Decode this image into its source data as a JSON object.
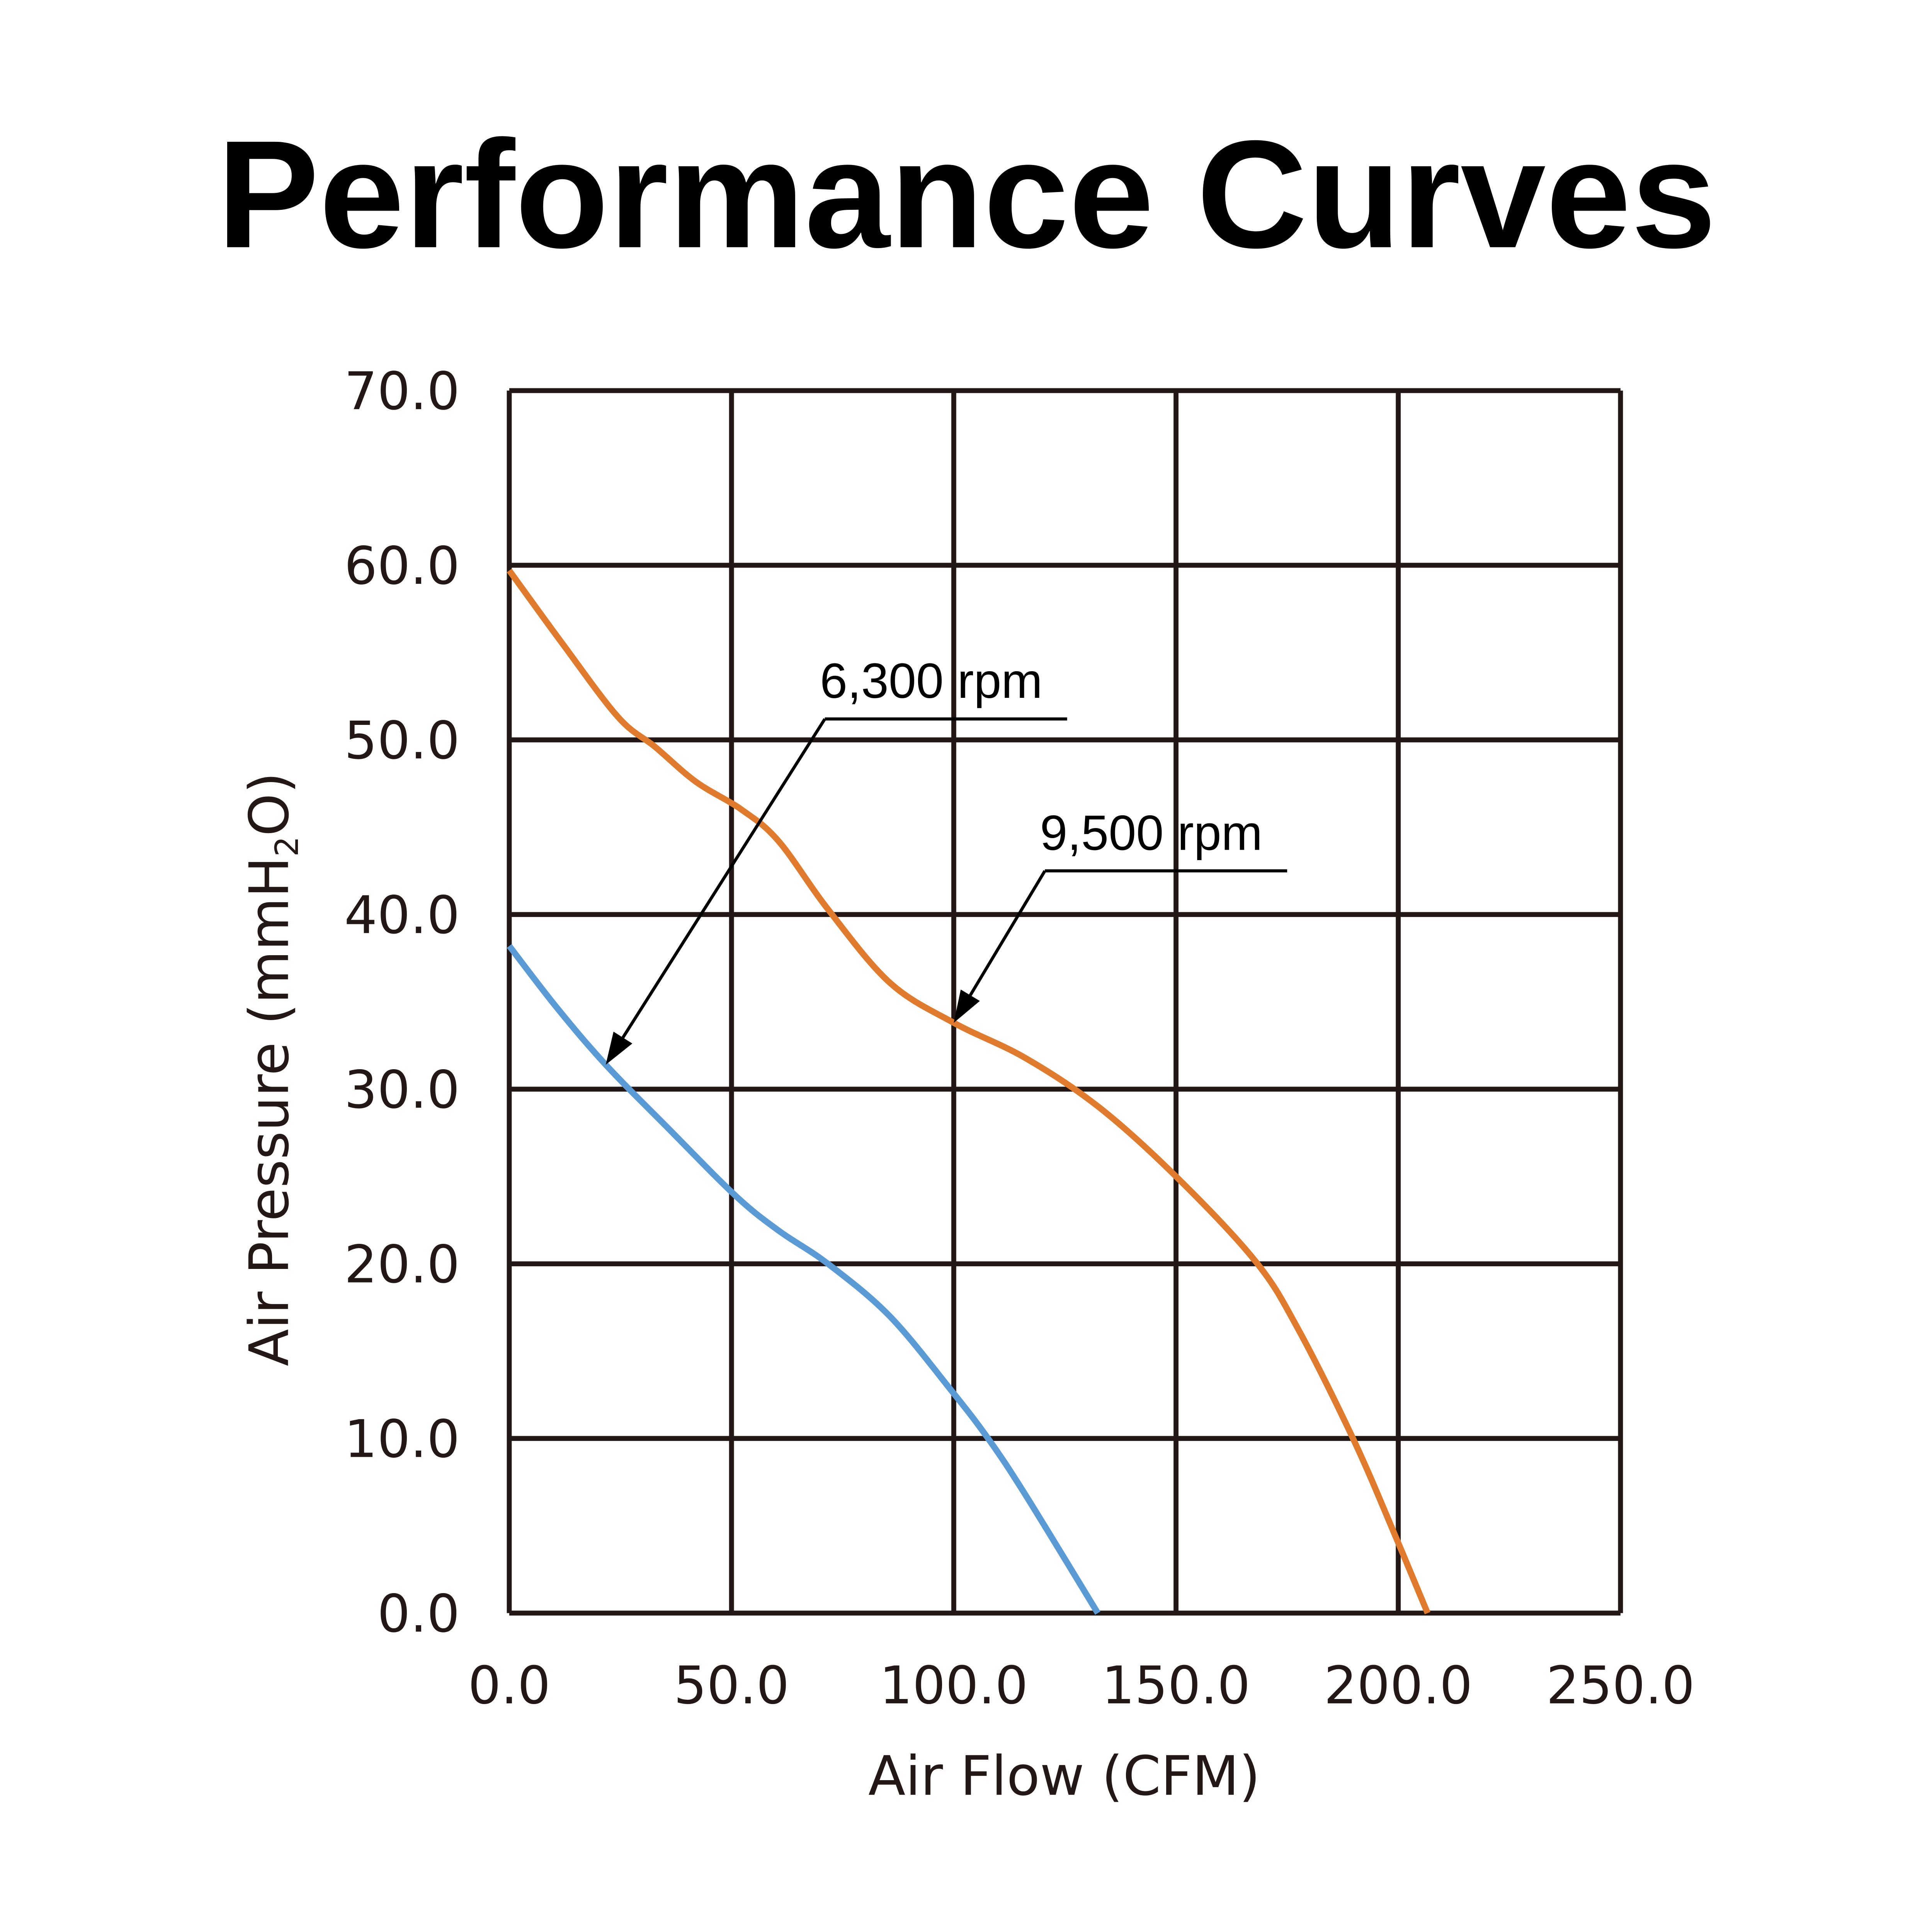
{
  "chart_data": {
    "type": "line",
    "title": "Performance Curves",
    "xlabel": "Air Flow (CFM)",
    "ylabel": "Air Pressure (mmH2O)",
    "ylabel_parts": {
      "pre": "Air Pressure (mmH",
      "sub": "2",
      "post": "O)"
    },
    "xlim": [
      0,
      250
    ],
    "ylim": [
      0,
      70
    ],
    "grid": true,
    "x_ticks": [
      "0.0",
      "50.0",
      "100.0",
      "150.0",
      "200.0",
      "250.0"
    ],
    "y_ticks": [
      "0.0",
      "10.0",
      "20.0",
      "30.0",
      "40.0",
      "50.0",
      "60.0",
      "70.0"
    ],
    "series": [
      {
        "name": "9,500 rpm",
        "color": "#E07B2E",
        "points": [
          [
            0,
            59.7
          ],
          [
            12,
            55.5
          ],
          [
            24.5,
            51.3
          ],
          [
            32.8,
            49.6
          ],
          [
            42,
            47.6
          ],
          [
            52.3,
            46
          ],
          [
            60.6,
            44.2
          ],
          [
            71.7,
            40.3
          ],
          [
            85.6,
            36.1
          ],
          [
            100,
            33.8
          ],
          [
            116,
            31.8
          ],
          [
            132.5,
            29
          ],
          [
            149.6,
            25.1
          ],
          [
            167.7,
            20.2
          ],
          [
            177.4,
            16.3
          ],
          [
            190,
            9.9
          ],
          [
            199.7,
            4.2
          ],
          [
            206.6,
            0
          ]
        ]
      },
      {
        "name": "6,300 rpm",
        "color": "#5B9BD5",
        "points": [
          [
            0,
            38.2
          ],
          [
            10.6,
            34.7
          ],
          [
            21.7,
            31.4
          ],
          [
            35.6,
            27.8
          ],
          [
            50.9,
            23.9
          ],
          [
            60.6,
            21.9
          ],
          [
            71.7,
            20
          ],
          [
            85.6,
            17
          ],
          [
            99.6,
            12.7
          ],
          [
            108,
            9.9
          ],
          [
            116.3,
            6.7
          ],
          [
            132.4,
            0
          ]
        ]
      }
    ],
    "annotations": [
      {
        "text": "6,300 rpm",
        "series": "6,300 rpm",
        "label_at": [
          71,
          51.2
        ],
        "points_to": [
          21.7,
          31.4
        ]
      },
      {
        "text": "9,500 rpm",
        "series": "9,500 rpm",
        "label_at": [
          120.5,
          42.5
        ],
        "points_to": [
          100,
          33.8
        ]
      }
    ]
  }
}
